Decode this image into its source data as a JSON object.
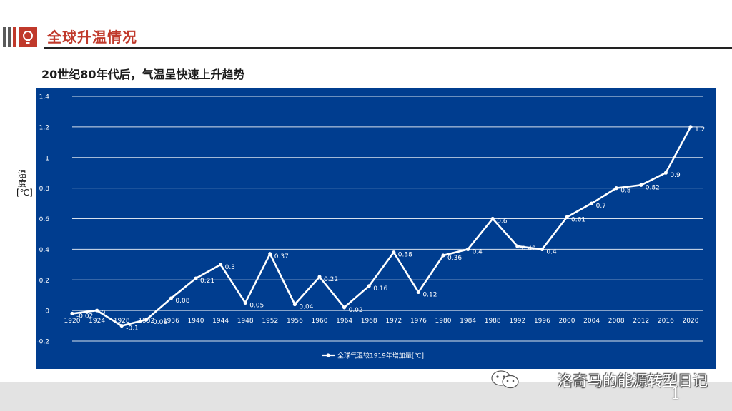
{
  "header": {
    "title": "全球升温情况"
  },
  "subtitle": "20世纪80年代后，气温呈快速上升趋势",
  "watermark": "洛奇马的能源转型日记",
  "page_number": "1",
  "colors": {
    "panel": "#003d8f",
    "line": "#ffffff",
    "accent": "#c0392b"
  },
  "chart_data": {
    "type": "line",
    "title": "",
    "xlabel": "",
    "ylabel": "温度[℃]",
    "ylim": [
      -0.2,
      1.4
    ],
    "yticks": [
      "-0.2",
      "0",
      "0.2",
      "0.4",
      "0.6",
      "0.8",
      "1",
      "1.2",
      "1.4"
    ],
    "grid": true,
    "legend_position": "bottom-center",
    "categories": [
      "1920",
      "1924",
      "1928",
      "1932",
      "1936",
      "1940",
      "1944",
      "1948",
      "1952",
      "1956",
      "1960",
      "1964",
      "1968",
      "1972",
      "1976",
      "1980",
      "1984",
      "1988",
      "1992",
      "1996",
      "2000",
      "2004",
      "2008",
      "2012",
      "2016",
      "2020"
    ],
    "series": [
      {
        "name": "全球气温较1919年增加量[℃]",
        "values": [
          -0.02,
          0,
          -0.1,
          -0.06,
          0.08,
          0.21,
          0.3,
          0.05,
          0.37,
          0.04,
          0.22,
          0.02,
          0.16,
          0.38,
          0.12,
          0.36,
          0.4,
          0.6,
          0.42,
          0.4,
          0.61,
          0.7,
          0.8,
          0.82,
          0.9,
          1.2
        ],
        "labels": [
          "-0.02",
          "0",
          "-0.1",
          "-0.06",
          "0.08",
          "0.21",
          "0.3",
          "0.05",
          "0.37",
          "0.04",
          "0.22",
          "0.02",
          "0.16",
          "0.38",
          "0.12",
          "0.36",
          "0.4",
          "0.6",
          "0.42",
          "0.4",
          "0.61",
          "0.7",
          "0.8",
          "0.82",
          "0.9",
          "1.2"
        ]
      }
    ]
  }
}
